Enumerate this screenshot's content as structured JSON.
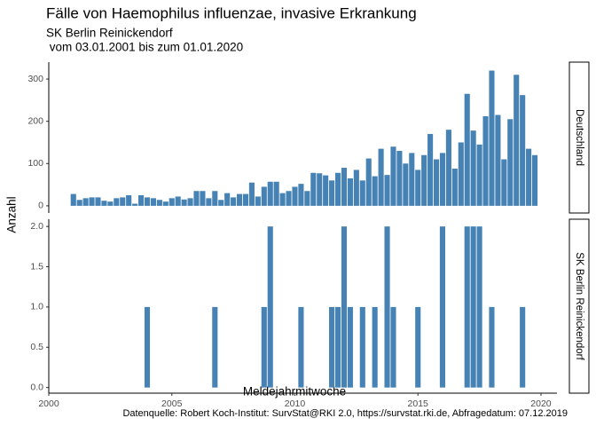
{
  "chart_data": {
    "type": "bar",
    "title": "Fälle von Haemophilus influenzae, invasive Erkrankung",
    "subtitle": [
      "SK Berlin Reinickendorf",
      " vom 03.01.2001 bis zum 01.01.2020"
    ],
    "xlabel": "Meldejahrmitwoche",
    "ylabel": "Anzahl",
    "caption": "Datenquelle: Robert Koch-Institut: SurvStat@RKI 2.0, https://survstat.rki.de, Abfragedatum: 07.12.2019",
    "color": "#4682b4",
    "x": [
      2001,
      2001.25,
      2001.5,
      2001.75,
      2002,
      2002.25,
      2002.5,
      2002.75,
      2003,
      2003.25,
      2003.5,
      2003.75,
      2004,
      2004.25,
      2004.5,
      2004.75,
      2005,
      2005.25,
      2005.5,
      2005.75,
      2006,
      2006.25,
      2006.5,
      2006.75,
      2007,
      2007.25,
      2007.5,
      2007.75,
      2008,
      2008.25,
      2008.5,
      2008.75,
      2009,
      2009.25,
      2009.5,
      2009.75,
      2010,
      2010.25,
      2010.5,
      2010.75,
      2011,
      2011.25,
      2011.5,
      2011.75,
      2012,
      2012.25,
      2012.5,
      2012.75,
      2013,
      2013.25,
      2013.5,
      2013.75,
      2014,
      2014.25,
      2014.5,
      2014.75,
      2015,
      2015.25,
      2015.5,
      2015.75,
      2016,
      2016.25,
      2016.5,
      2016.75,
      2017,
      2017.25,
      2017.5,
      2017.75,
      2018,
      2018.25,
      2018.5,
      2018.75,
      2019,
      2019.25,
      2019.5,
      2019.75
    ],
    "xlim": [
      2000,
      2020.65
    ],
    "xticks": [
      2000,
      2005,
      2010,
      2015,
      2020
    ],
    "panels": [
      {
        "name": "Deutschland",
        "ylim": [
          -17,
          340
        ],
        "yticks": [
          0,
          100,
          200,
          300
        ],
        "values": [
          28,
          14,
          18,
          20,
          20,
          12,
          10,
          18,
          20,
          25,
          5,
          25,
          20,
          18,
          14,
          10,
          18,
          22,
          15,
          18,
          35,
          35,
          18,
          35,
          14,
          30,
          20,
          28,
          28,
          55,
          22,
          45,
          57,
          57,
          30,
          35,
          45,
          52,
          35,
          78,
          77,
          72,
          60,
          78,
          90,
          65,
          85,
          60,
          112,
          70,
          135,
          73,
          140,
          130,
          100,
          125,
          85,
          120,
          170,
          110,
          125,
          180,
          88,
          150,
          265,
          178,
          145,
          212,
          320,
          215,
          110,
          205,
          310,
          262,
          135,
          120
        ]
      },
      {
        "name": "SK Berlin Reinickendorf",
        "ylim": [
          -0.07,
          2.09
        ],
        "yticks": [
          {
            "value": 0,
            "label": "0.0"
          },
          {
            "value": 0.5,
            "label": "0.5"
          },
          {
            "value": 1,
            "label": "1.0"
          },
          {
            "value": 1.5,
            "label": "1.5"
          },
          {
            "value": 2,
            "label": "2.0"
          }
        ],
        "values": [
          0,
          0,
          0,
          0,
          0,
          0,
          0,
          0,
          0,
          0,
          0,
          0,
          1,
          0,
          0,
          0,
          0,
          0,
          0,
          0,
          0,
          0,
          0,
          1,
          0,
          0,
          0,
          0,
          0,
          0,
          0,
          1,
          2,
          0,
          0,
          0,
          0,
          1,
          0,
          0,
          0,
          0,
          1,
          1,
          2,
          1,
          0,
          1,
          0,
          1,
          0,
          2,
          1,
          0,
          0,
          0,
          1,
          0,
          0,
          0,
          2,
          0,
          0,
          0,
          2,
          2,
          2,
          0,
          1,
          0,
          0,
          0,
          0,
          1,
          0,
          0
        ]
      }
    ]
  }
}
